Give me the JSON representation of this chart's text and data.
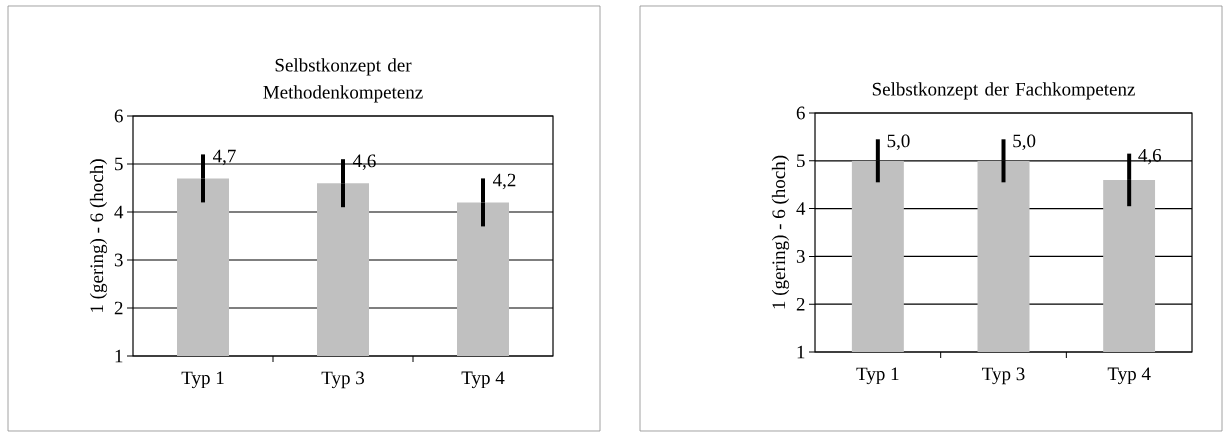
{
  "chart_data": [
    {
      "type": "bar",
      "title": "Selbstkonzept der Methodenkompetenz",
      "ylabel": "1 (gering) - 6 (hoch)",
      "categories": [
        "Typ 1",
        "Typ 3",
        "Typ 4"
      ],
      "values": [
        4.7,
        4.6,
        4.2
      ],
      "errors": [
        0.5,
        0.5,
        0.5
      ],
      "value_labels": [
        "4,7",
        "4,6",
        "4,2"
      ],
      "color": "#c0c0c0",
      "ylim": [
        1,
        6
      ],
      "yticks": [
        1,
        2,
        3,
        4,
        5,
        6
      ],
      "grid": "y"
    },
    {
      "type": "bar",
      "title": "Selbstkonzept der Fachkompetenz",
      "ylabel": "1 (gering) - 6 (hoch)",
      "categories": [
        "Typ 1",
        "Typ 3",
        "Typ 4"
      ],
      "values": [
        5.0,
        5.0,
        4.6
      ],
      "errors": [
        0.45,
        0.45,
        0.55
      ],
      "value_labels": [
        "5,0",
        "5,0",
        "4,6"
      ],
      "color": "#c0c0c0",
      "ylim": [
        1,
        6
      ],
      "yticks": [
        1,
        2,
        3,
        4,
        5,
        6
      ],
      "grid": "y"
    }
  ]
}
